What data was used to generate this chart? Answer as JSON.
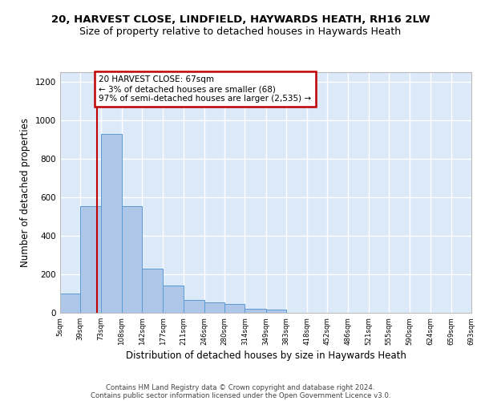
{
  "title1": "20, HARVEST CLOSE, LINDFIELD, HAYWARDS HEATH, RH16 2LW",
  "title2": "Size of property relative to detached houses in Haywards Heath",
  "xlabel": "Distribution of detached houses by size in Haywards Heath",
  "ylabel": "Number of detached properties",
  "footer1": "Contains HM Land Registry data © Crown copyright and database right 2024.",
  "footer2": "Contains public sector information licensed under the Open Government Licence v3.0.",
  "annotation_title": "20 HARVEST CLOSE: 67sqm",
  "annotation_line1": "← 3% of detached houses are smaller (68)",
  "annotation_line2": "97% of semi-detached houses are larger (2,535) →",
  "bar_edges": [
    5,
    39,
    73,
    108,
    142,
    177,
    211,
    246,
    280,
    314,
    349,
    383,
    418,
    452,
    486,
    521,
    555,
    590,
    624,
    659,
    693
  ],
  "bar_heights": [
    100,
    555,
    930,
    555,
    230,
    140,
    65,
    55,
    45,
    22,
    18,
    0,
    0,
    0,
    0,
    0,
    0,
    0,
    0,
    0
  ],
  "bar_color": "#aec6e8",
  "bar_edge_color": "#5b9bd5",
  "vline_x": 67,
  "vline_color": "#c00000",
  "annotation_box_color": "#c00000",
  "ylim": [
    0,
    1250
  ],
  "yticks": [
    0,
    200,
    400,
    600,
    800,
    1000,
    1200
  ],
  "background_color": "#dce9f8",
  "grid_color": "#ffffff",
  "title1_fontsize": 9.5,
  "title2_fontsize": 9,
  "xlabel_fontsize": 8.5,
  "ylabel_fontsize": 8.5,
  "footer_fontsize": 6.2
}
